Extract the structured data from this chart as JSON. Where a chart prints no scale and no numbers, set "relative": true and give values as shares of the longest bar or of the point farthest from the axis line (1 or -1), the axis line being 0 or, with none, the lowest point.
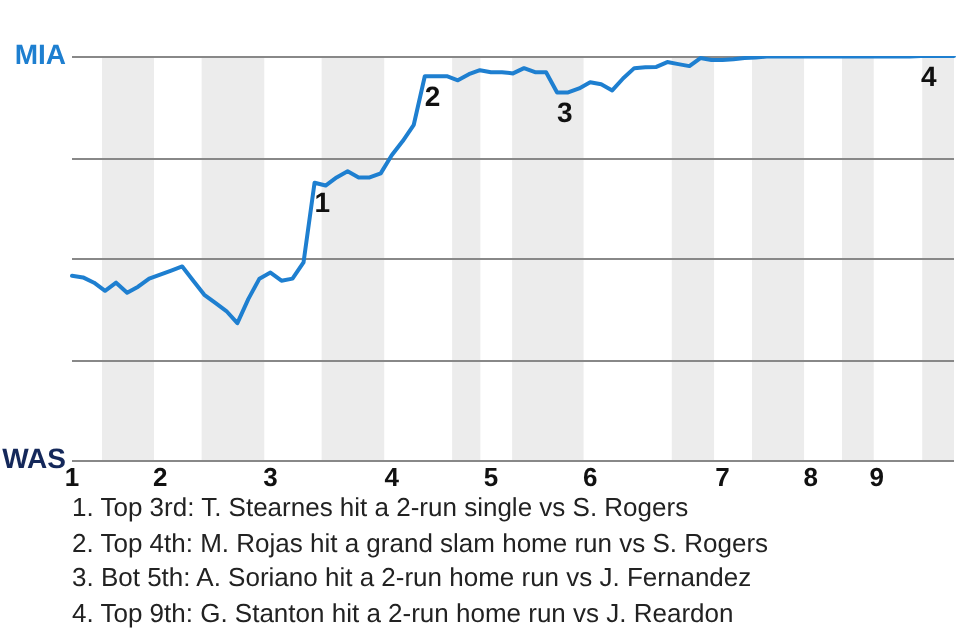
{
  "chart_data": {
    "type": "line",
    "relative": true,
    "categories": [
      "1",
      null,
      null,
      null,
      null,
      null,
      null,
      null,
      "2",
      null,
      null,
      null,
      null,
      null,
      null,
      null,
      null,
      null,
      "3",
      null,
      null,
      null,
      null,
      null,
      null,
      null,
      null,
      null,
      null,
      "4",
      null,
      null,
      null,
      null,
      null,
      null,
      null,
      null,
      "5",
      null,
      null,
      null,
      null,
      null,
      null,
      null,
      null,
      "6",
      null,
      null,
      null,
      null,
      null,
      null,
      null,
      null,
      null,
      null,
      null,
      "7",
      null,
      null,
      null,
      null,
      null,
      null,
      null,
      "8",
      null,
      null,
      null,
      null,
      null,
      "9",
      null,
      null,
      null,
      null,
      null,
      null,
      null
    ],
    "series": [
      {
        "color": "#1e7fd0",
        "values": [
          0.457,
          0.453,
          0.44,
          0.42,
          0.44,
          0.415,
          0.43,
          0.45,
          0.46,
          0.47,
          0.48,
          0.445,
          0.41,
          0.39,
          0.37,
          0.34,
          0.4,
          0.45,
          0.465,
          0.445,
          0.45,
          0.49,
          0.687,
          0.68,
          0.7,
          0.715,
          0.7,
          0.7,
          0.71,
          0.755,
          0.79,
          0.83,
          0.95,
          0.95,
          0.95,
          0.94,
          0.955,
          0.965,
          0.96,
          0.96,
          0.957,
          0.97,
          0.96,
          0.96,
          0.91,
          0.91,
          0.92,
          0.935,
          0.93,
          0.915,
          0.945,
          0.97,
          0.972,
          0.973,
          0.985,
          0.98,
          0.975,
          0.995,
          0.99,
          0.99,
          0.992,
          0.995,
          0.996,
          0.999,
          0.999,
          0.999,
          0.999,
          0.999,
          0.999,
          0.999,
          0.999,
          0.999,
          0.999,
          0.999,
          0.999,
          0.999,
          0.999,
          1,
          1,
          1,
          1
        ],
        "name": null
      }
    ],
    "legend": false,
    "marker": "none",
    "line_style": "solid",
    "annotations": [
      {
        "text": "1",
        "y": 0.687
      },
      {
        "text": "2",
        "y": 0.95
      },
      {
        "text": "3",
        "y": 0.91
      },
      {
        "text": "4",
        "y": 1
      },
      "MIA",
      "WAS",
      "1. Top 3rd: T. Stearnes hit a 2-run single vs S. Rogers",
      "2. Top 4th: M. Rojas hit a grand slam home run vs S. Rogers",
      "3. Bot 5th: A. Soriano hit a 2-run home run vs J. Fernandez",
      "4. Top 9th: G. Stanton hit a 2-run home run vs J. Reardon"
    ]
  }
}
